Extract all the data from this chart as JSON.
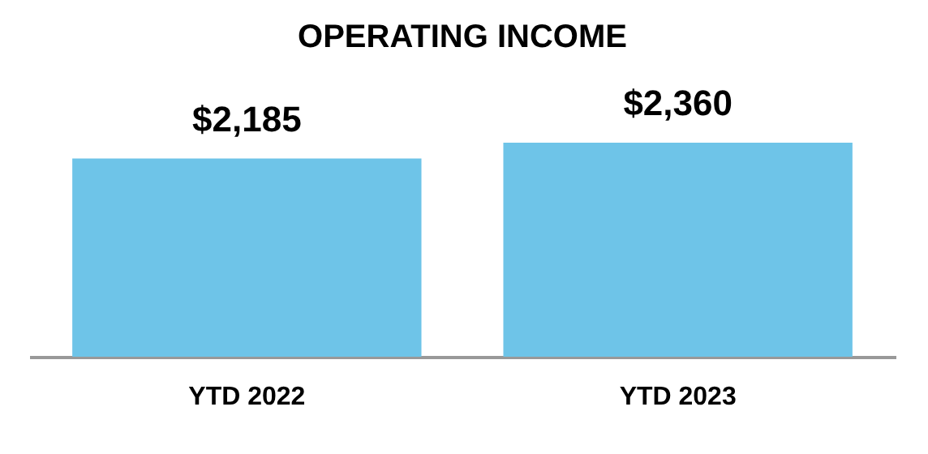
{
  "chart_data": {
    "type": "bar",
    "title": "OPERATING INCOME",
    "categories": [
      "YTD 2022",
      "YTD 2023"
    ],
    "values": [
      2185,
      2360
    ],
    "value_labels": [
      "$2,185",
      "$2,360"
    ],
    "color": "#6ec4e8"
  }
}
